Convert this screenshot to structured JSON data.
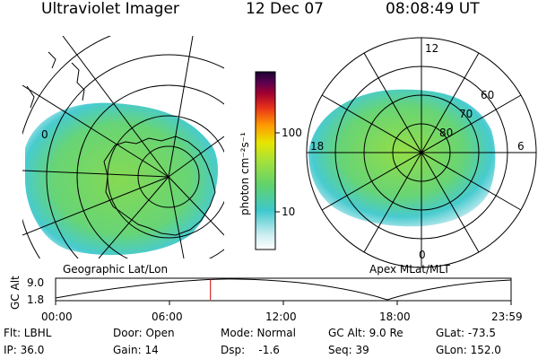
{
  "header": {
    "instrument": "Ultraviolet Imager",
    "date": "12 Dec 07",
    "time": "08:08:49 UT"
  },
  "left_panel": {
    "label": "Geographic Lat/Lon",
    "lon_labels": [
      "0"
    ]
  },
  "right_panel": {
    "label": "Apex MLat/MLT",
    "lat_labels": [
      "60",
      "70",
      "80"
    ],
    "mlt_labels": [
      "12",
      "18",
      "6",
      "0"
    ]
  },
  "colorbar": {
    "label": "photon cm⁻²s⁻¹",
    "tick_labels": [
      "100",
      "10"
    ],
    "scale": "log",
    "colors": [
      "#ffffff",
      "#9fdfe6",
      "#3ec8cc",
      "#5fd26e",
      "#a6e13a",
      "#e6e600",
      "#ff9900",
      "#e6301a",
      "#a00030",
      "#5a0050",
      "#1a0033"
    ]
  },
  "altitude_plot": {
    "ylabel": "GC Alt",
    "y_ticks": [
      "9.0",
      "1.8"
    ],
    "x_ticks": [
      "00:00",
      "06:00",
      "12:00",
      "18:00",
      "23:59"
    ],
    "current_time_fraction": 0.34
  },
  "info": {
    "filter": "Flt: LBHL",
    "ip": "IP: 36.0",
    "door": "Door: Open",
    "gain": "Gain: 14",
    "mode": "Mode: Normal",
    "dsp": "Dsp:    -1.6",
    "gc_alt": "GC Alt: 9.0 Re",
    "seq": "Seq: 39",
    "glat": "GLat: -73.5",
    "glon": "GLon: 152.0"
  }
}
